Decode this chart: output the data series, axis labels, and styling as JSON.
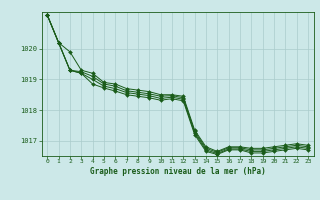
{
  "title": "Graphe pression niveau de la mer (hPa)",
  "bg_color": "#cce8e8",
  "grid_color": "#aacccc",
  "line_color": "#1a5c1a",
  "xlim": [
    -0.5,
    23.5
  ],
  "ylim": [
    1016.5,
    1021.2
  ],
  "yticks": [
    1017,
    1018,
    1019,
    1020
  ],
  "xticks": [
    0,
    1,
    2,
    3,
    4,
    5,
    6,
    7,
    8,
    9,
    10,
    11,
    12,
    13,
    14,
    15,
    16,
    17,
    18,
    19,
    20,
    21,
    22,
    23
  ],
  "series": [
    [
      1021.1,
      1020.2,
      1019.9,
      1019.3,
      1019.2,
      1018.9,
      1018.85,
      1018.7,
      1018.65,
      1018.6,
      1018.5,
      1018.5,
      1018.45,
      1017.35,
      1016.8,
      1016.65,
      1016.8,
      1016.8,
      1016.75,
      1016.75,
      1016.8,
      1016.85,
      1016.9,
      1016.85
    ],
    [
      1021.1,
      1020.2,
      1019.3,
      1019.25,
      1019.1,
      1018.85,
      1018.78,
      1018.63,
      1018.58,
      1018.53,
      1018.45,
      1018.47,
      1018.4,
      1017.3,
      1016.75,
      1016.62,
      1016.77,
      1016.77,
      1016.7,
      1016.7,
      1016.75,
      1016.8,
      1016.85,
      1016.8
    ],
    [
      1021.1,
      1020.2,
      1019.3,
      1019.2,
      1019.0,
      1018.78,
      1018.7,
      1018.57,
      1018.52,
      1018.47,
      1018.38,
      1018.42,
      1018.35,
      1017.25,
      1016.7,
      1016.58,
      1016.73,
      1016.73,
      1016.65,
      1016.65,
      1016.7,
      1016.75,
      1016.8,
      1016.75
    ],
    [
      1021.1,
      1020.2,
      1019.3,
      1019.2,
      1018.85,
      1018.72,
      1018.62,
      1018.5,
      1018.45,
      1018.4,
      1018.32,
      1018.37,
      1018.3,
      1017.2,
      1016.65,
      1016.55,
      1016.7,
      1016.7,
      1016.6,
      1016.6,
      1016.65,
      1016.7,
      1016.75,
      1016.7
    ]
  ]
}
